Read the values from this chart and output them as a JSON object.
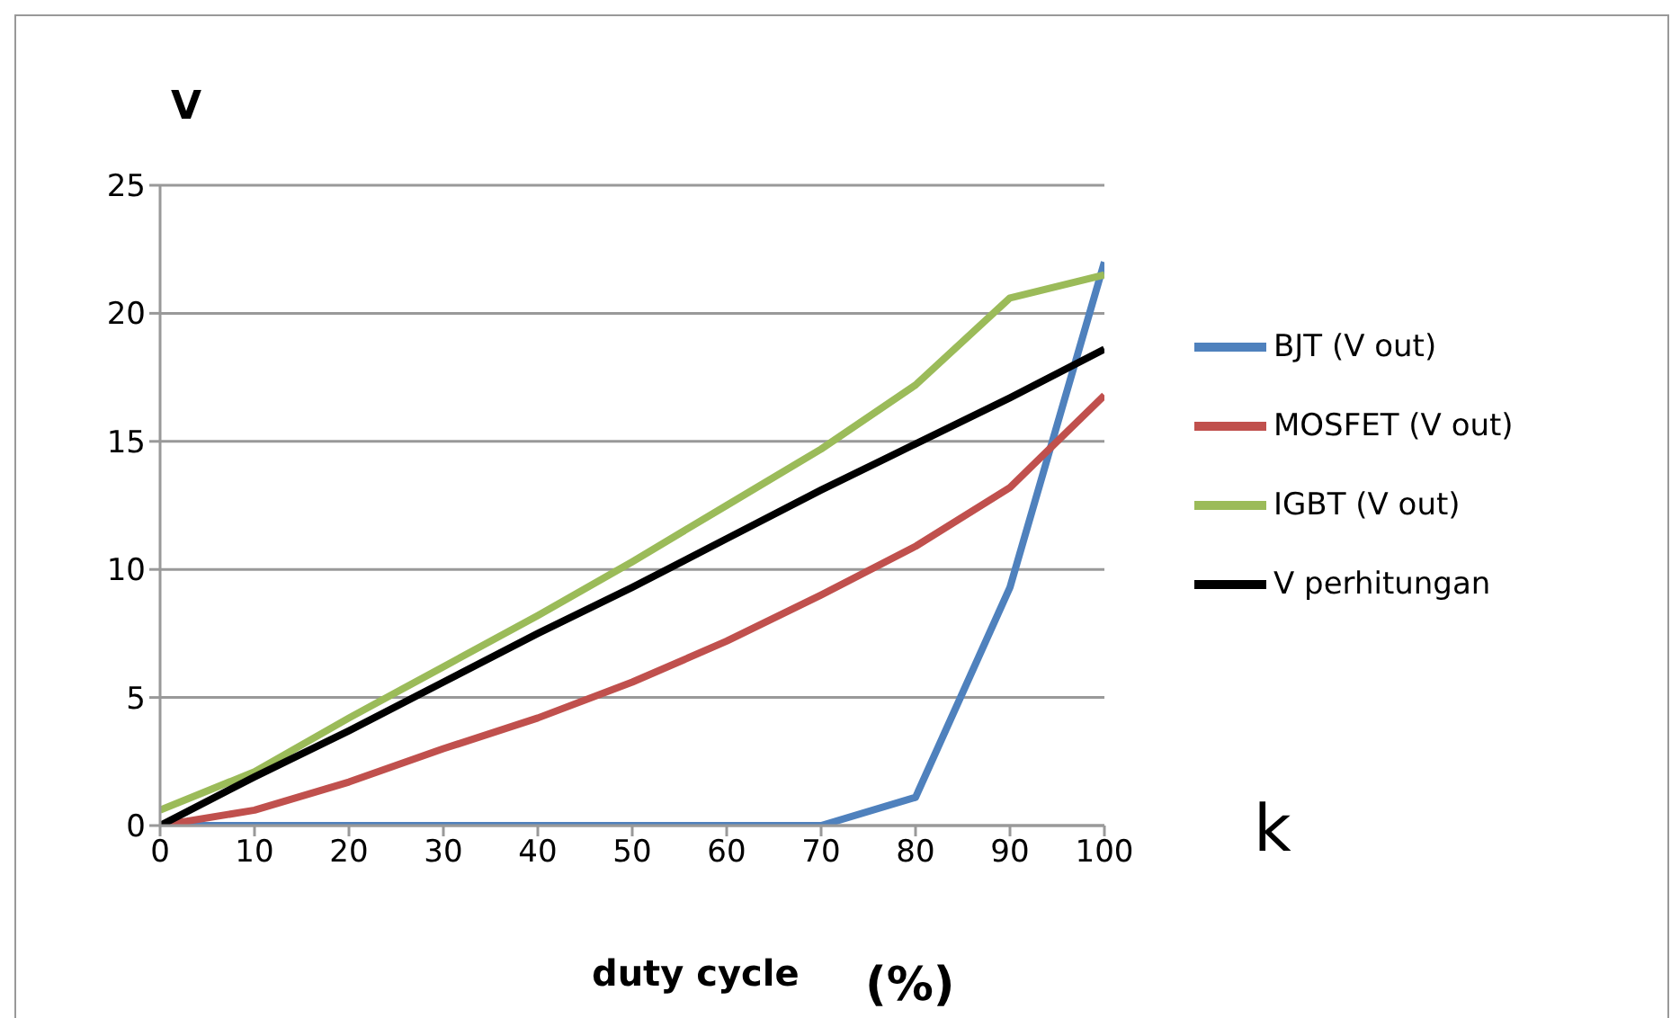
{
  "chart_data": {
    "type": "line",
    "xlabel": "duty cycle",
    "ylabel": "V",
    "annotations": [
      "(%)",
      "k"
    ],
    "x": [
      0,
      10,
      20,
      30,
      40,
      50,
      60,
      70,
      80,
      90,
      100
    ],
    "xlim": [
      0,
      100
    ],
    "xticks": [
      0,
      10,
      20,
      30,
      40,
      50,
      60,
      70,
      80,
      90,
      100
    ],
    "ylim": [
      0,
      25
    ],
    "yticks": [
      0,
      5,
      10,
      15,
      20,
      25
    ],
    "grid": "y",
    "legend": "right",
    "marker": "none",
    "line_style": "solid",
    "series": [
      {
        "name": "BJT (V out)",
        "color": "#4f81bd",
        "values": [
          0,
          0,
          0,
          0,
          0,
          0,
          0,
          0,
          1.1,
          9.3,
          22
        ]
      },
      {
        "name": "MOSFET (V out)",
        "color": "#c0504d",
        "values": [
          0,
          0.6,
          1.7,
          3.0,
          4.2,
          5.6,
          7.2,
          9.0,
          10.9,
          13.2,
          16.8
        ]
      },
      {
        "name": "IGBT (V out)",
        "color": "#9bbb59",
        "values": [
          0.6,
          2.1,
          4.2,
          6.2,
          8.2,
          10.3,
          12.5,
          14.7,
          17.2,
          20.6,
          21.5
        ]
      },
      {
        "name": "V perhitungan",
        "color": "#000000",
        "values": [
          0,
          1.9,
          3.7,
          5.6,
          7.5,
          9.3,
          11.2,
          13.1,
          14.9,
          16.7,
          18.6
        ]
      }
    ]
  }
}
